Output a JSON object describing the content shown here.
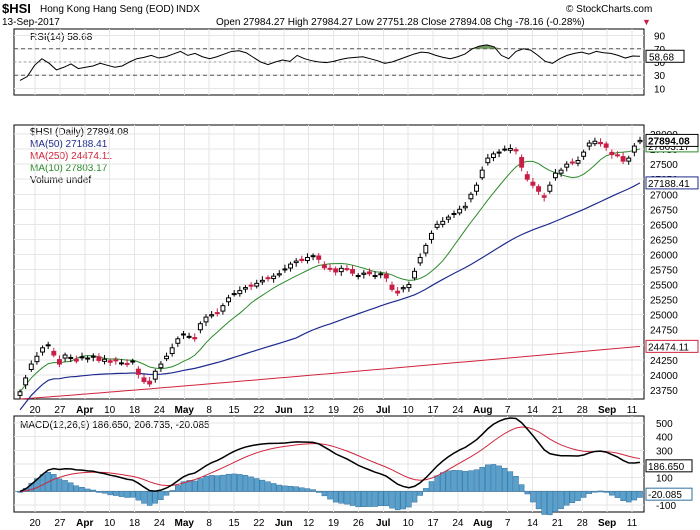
{
  "header": {
    "symbol": "$HSI",
    "name": "Hong Kong Hang Seng (EOD)",
    "exchange": "INDX",
    "date": "13-Sep-2017",
    "ohlc": "Open 27984.27  High 27984.27  Low 27751.28  Close 27894.08  Chg -78.16 (-0.28%)",
    "brand": "© StockCharts.com"
  },
  "chart_data": [
    {
      "id": "rsi",
      "type": "line",
      "title": "RSI(14) 58.68",
      "current": "58.68",
      "ylim": [
        0,
        100
      ],
      "yticks": [
        10,
        30,
        50,
        70,
        90
      ],
      "bands": [
        30,
        70
      ],
      "values": [
        22,
        28,
        45,
        55,
        48,
        38,
        42,
        47,
        40,
        42,
        44,
        48,
        45,
        42,
        44,
        50,
        55,
        57,
        60,
        56,
        58,
        62,
        66,
        60,
        63,
        58,
        55,
        58,
        62,
        66,
        67,
        64,
        57,
        50,
        46,
        50,
        53,
        51,
        60,
        55,
        52,
        50,
        49,
        51,
        54,
        56,
        57,
        58,
        55,
        52,
        48,
        50,
        54,
        58,
        62,
        65,
        64,
        60,
        57,
        55,
        58,
        62,
        70,
        74,
        76,
        73,
        60,
        55,
        66,
        70,
        68,
        60,
        51,
        48,
        55,
        60,
        63,
        65,
        62,
        66,
        64,
        63,
        60,
        56,
        59,
        58.68
      ]
    },
    {
      "id": "price",
      "type": "candlestick",
      "title": "$HSI (Daily) 27894.08",
      "current": "27894.08",
      "ylim": [
        23600,
        28150
      ],
      "yticks": [
        23750,
        24000,
        24250,
        24500,
        24750,
        25000,
        25250,
        25500,
        25750,
        26000,
        26250,
        26500,
        26750,
        27000,
        27250,
        27500,
        27750,
        28000
      ],
      "xticks": [
        "20",
        "27",
        "Apr",
        "10",
        "18",
        "24",
        "May",
        "8",
        "15",
        "22",
        "Jun",
        "12",
        "19",
        "26",
        "Jul",
        "10",
        "17",
        "24",
        "Aug",
        "7",
        "14",
        "21",
        "28",
        "Sep",
        "11"
      ],
      "legend": [
        "$HSI (Daily) 27894.08",
        "MA(50) 27188.41",
        "MA(250) 24474.11",
        "MA(10) 27803.17",
        "Volume undef"
      ],
      "closes": [
        23720,
        23950,
        24180,
        24310,
        24450,
        24500,
        24330,
        24180,
        24330,
        24290,
        24230,
        24300,
        24280,
        24310,
        24240,
        24260,
        24210,
        24240,
        24200,
        24180,
        24230,
        24010,
        23890,
        23850,
        24060,
        24180,
        24310,
        24450,
        24600,
        24680,
        24640,
        24600,
        24850,
        24960,
        25000,
        25020,
        25150,
        25280,
        25350,
        25400,
        25450,
        25480,
        25520,
        25570,
        25610,
        25640,
        25680,
        25760,
        25840,
        25890,
        25900,
        25950,
        25980,
        25920,
        25780,
        25760,
        25710,
        25770,
        25760,
        25690,
        25650,
        25690,
        25680,
        25650,
        25680,
        25610,
        25420,
        25360,
        25450,
        25500,
        25720,
        25950,
        26150,
        26350,
        26500,
        26550,
        26620,
        26680,
        26750,
        26800,
        27000,
        27150,
        27400,
        27600,
        27670,
        27700,
        27750,
        27760,
        27720,
        27450,
        27250,
        27150,
        27050,
        26950,
        27150,
        27350,
        27400,
        27500,
        27520,
        27560,
        27700,
        27850,
        27880,
        27840,
        27780,
        27660,
        27650,
        27550,
        27600,
        27800,
        27894.08
      ],
      "ma50_last": 27188.41,
      "ma250_last": 24474.11,
      "ma10_last": 27803.17,
      "ma50_label": "27188.41",
      "ma250_label": "24474.11",
      "ma10_label": "27803.17"
    },
    {
      "id": "macd",
      "type": "line+histogram",
      "title": "MACD(12,26,9) 186.650, 206.735, -20.085",
      "current_macd": "186.650",
      "current_hist": "-20.085",
      "ylim": [
        -150,
        550
      ],
      "yticks": [
        -100,
        0,
        100,
        200,
        300,
        400,
        500
      ],
      "xticks": [
        "20",
        "27",
        "Apr",
        "10",
        "18",
        "24",
        "May",
        "8",
        "15",
        "22",
        "Jun",
        "12",
        "19",
        "26",
        "Jul",
        "10",
        "17",
        "24",
        "Aug",
        "7",
        "14",
        "21",
        "28",
        "Sep",
        "11"
      ]
    }
  ],
  "colors": {
    "ma50": "#1f2c8f",
    "ma250": "#d0243c",
    "ma10": "#2a8a2a",
    "up": "#000000",
    "down": "#c81e46",
    "hist": "#5aa0cc",
    "rsiFill": "#4f7f3a"
  }
}
